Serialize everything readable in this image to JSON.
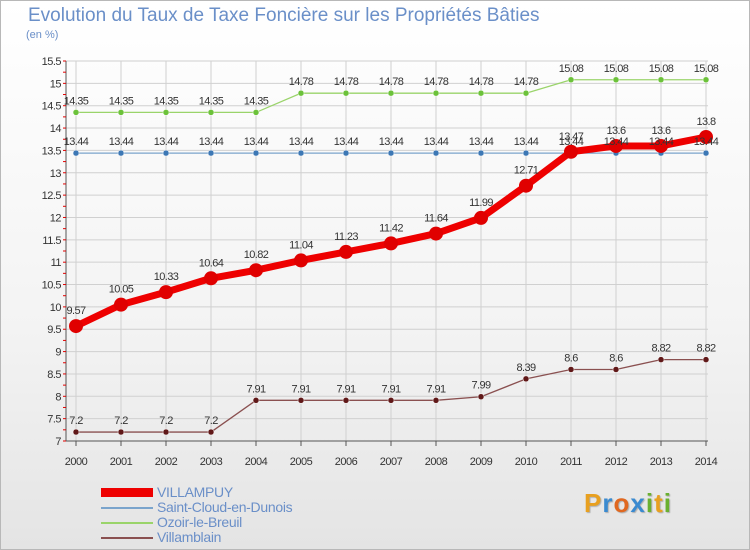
{
  "header": {
    "title": "Evolution du Taux de Taxe Foncière sur les Propriétés Bâties",
    "subtitle": "(en %)"
  },
  "brand": {
    "letters": [
      {
        "ch": "P",
        "color": "#e8a020"
      },
      {
        "ch": "r",
        "color": "#3a8ad0"
      },
      {
        "ch": "o",
        "color": "#e06820"
      },
      {
        "ch": "x",
        "color": "#3a8ad0"
      },
      {
        "ch": "i",
        "color": "#6ab030"
      },
      {
        "ch": "t",
        "color": "#e8a020"
      },
      {
        "ch": "i",
        "color": "#6ab030"
      }
    ]
  },
  "chart_data": {
    "type": "line",
    "title": "Evolution du Taux de Taxe Foncière sur les Propriétés Bâties",
    "ylabel": "(en %)",
    "xlabel": "",
    "ylim": [
      7,
      15.5
    ],
    "yticks": [
      "7",
      "7.5",
      "8",
      "8.5",
      "9",
      "9.5",
      "10",
      "10.5",
      "11",
      "11.5",
      "12",
      "12.5",
      "13",
      "13.5",
      "14",
      "14.5",
      "15",
      "15.5"
    ],
    "x": [
      "2000",
      "2001",
      "2002",
      "2003",
      "2004",
      "2005",
      "2006",
      "2007",
      "2008",
      "2009",
      "2010",
      "2011",
      "2012",
      "2013",
      "2014"
    ],
    "grid": true,
    "legend_position": "bottom-left",
    "series": [
      {
        "name": "VILLAMPUY",
        "values": [
          9.57,
          10.05,
          10.33,
          10.64,
          10.82,
          11.04,
          11.23,
          11.42,
          11.64,
          11.99,
          12.71,
          13.47,
          13.6,
          13.6,
          13.8
        ],
        "labels": [
          "9.57",
          "10.05",
          "10.33",
          "10.64",
          "10.82",
          "11.04",
          "11.23",
          "11.42",
          "11.64",
          "11.99",
          "12.71",
          "13.47",
          "13.6",
          "13.6",
          "13.8"
        ],
        "color": "#ee0000",
        "line_color": "#ee0000",
        "marker_color": "#e00000",
        "bold": true
      },
      {
        "name": "Saint-Cloud-en-Dunois",
        "values": [
          13.44,
          13.44,
          13.44,
          13.44,
          13.44,
          13.44,
          13.44,
          13.44,
          13.44,
          13.44,
          13.44,
          13.44,
          13.44,
          13.44,
          13.44
        ],
        "labels": [
          "13.44",
          "13.44",
          "13.44",
          "13.44",
          "13.44",
          "13.44",
          "13.44",
          "13.44",
          "13.44",
          "13.44",
          "13.44",
          "13.44",
          "13.44",
          "13.44",
          "13.44"
        ],
        "color": "#7aa4cc",
        "line_color": "#7aa4cc",
        "marker_color": "#3d78b5",
        "bold": false
      },
      {
        "name": "Ozoir-le-Breuil",
        "values": [
          14.35,
          14.35,
          14.35,
          14.35,
          14.35,
          14.78,
          14.78,
          14.78,
          14.78,
          14.78,
          14.78,
          15.08,
          15.08,
          15.08,
          15.08
        ],
        "labels": [
          "14.35",
          "14.35",
          "14.35",
          "14.35",
          "14.35",
          "14.78",
          "14.78",
          "14.78",
          "14.78",
          "14.78",
          "14.78",
          "15.08",
          "15.08",
          "15.08",
          "15.08"
        ],
        "color": "#9ad46a",
        "line_color": "#9ad46a",
        "marker_color": "#6cc23a",
        "bold": false
      },
      {
        "name": "Villamblain",
        "values": [
          7.2,
          7.2,
          7.2,
          7.2,
          7.91,
          7.91,
          7.91,
          7.91,
          7.91,
          7.99,
          8.39,
          8.6,
          8.6,
          8.82,
          8.82
        ],
        "labels": [
          "7.2",
          "7.2",
          "7.2",
          "7.2",
          "7.91",
          "7.91",
          "7.91",
          "7.91",
          "7.91",
          "7.99",
          "8.39",
          "8.6",
          "8.6",
          "8.82",
          "8.82"
        ],
        "color": "#8a5050",
        "line_color": "#8a5050",
        "marker_color": "#601818",
        "bold": false
      }
    ]
  }
}
